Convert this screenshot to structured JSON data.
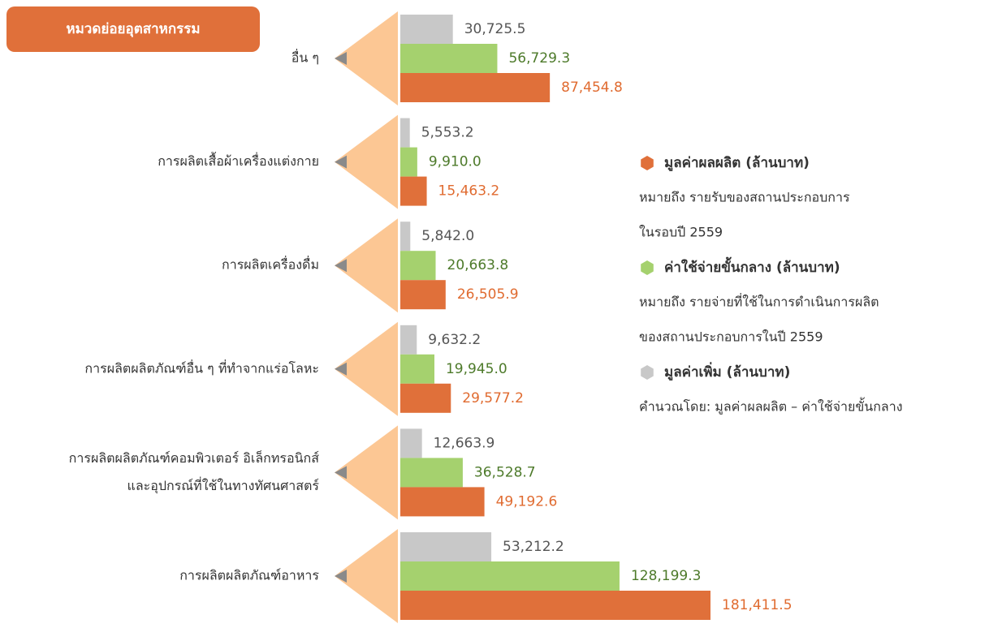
{
  "chart_data": {
    "type": "bar",
    "orientation": "horizontal",
    "header": "หมวดย่อยอุตสาหกรรม",
    "categories": [
      [
        "อื่น ๆ"
      ],
      [
        "การผลิตเสื้อผ้าเครื่องแต่งกาย"
      ],
      [
        "การผลิตเครื่องดื่ม"
      ],
      [
        "การผลิตผลิตภัณฑ์อื่น ๆ ที่ทำจากแร่อโลหะ"
      ],
      [
        "การผลิตผลิตภัณฑ์คอมพิวเตอร์ อิเล็กทรอนิกส์",
        "และอุปกรณ์ที่ใช้ในทางทัศนศาสตร์"
      ],
      [
        "การผลิตผลิตภัณฑ์อาหาร"
      ]
    ],
    "series": [
      {
        "name": "มูลค่าผลผลิต (ล้านบาท)",
        "color": "#e0703a",
        "description": [
          "หมายถึง รายรับของสถานประกอบการ",
          "ในรอบปี 2559"
        ],
        "values": [
          87454.8,
          15463.2,
          26505.9,
          29577.2,
          49192.6,
          181411.5
        ],
        "value_labels": [
          "87,454.8",
          "15,463.2",
          "26,505.9",
          "29,577.2",
          "49,192.6",
          "181,411.5"
        ]
      },
      {
        "name": "ค่าใช้จ่ายขั้นกลาง (ล้านบาท)",
        "color": "#a5d16e",
        "description": [
          "หมายถึง รายจ่ายที่ใช้ในการดำเนินการผลิต",
          "ของสถานประกอบการในปี 2559"
        ],
        "values": [
          56729.3,
          9910.0,
          20663.8,
          19945.0,
          36528.7,
          128199.3
        ],
        "value_labels": [
          "56,729.3",
          "9,910.0",
          "20,663.8",
          "19,945.0",
          "36,528.7",
          "128,199.3"
        ]
      },
      {
        "name": "มูลค่าเพิ่ม (ล้านบาท)",
        "color": "#c8c8c8",
        "description": [
          "คำนวณโดย: มูลค่าผลผลิต – ค่าใช้จ่ายขั้นกลาง"
        ],
        "values": [
          30725.5,
          5553.2,
          5842.0,
          9632.2,
          12663.9,
          53212.2
        ],
        "value_labels": [
          "30,725.5",
          "5,553.2",
          "5,842.0",
          "9,632.2",
          "12,663.9",
          "53,212.2"
        ]
      }
    ]
  }
}
